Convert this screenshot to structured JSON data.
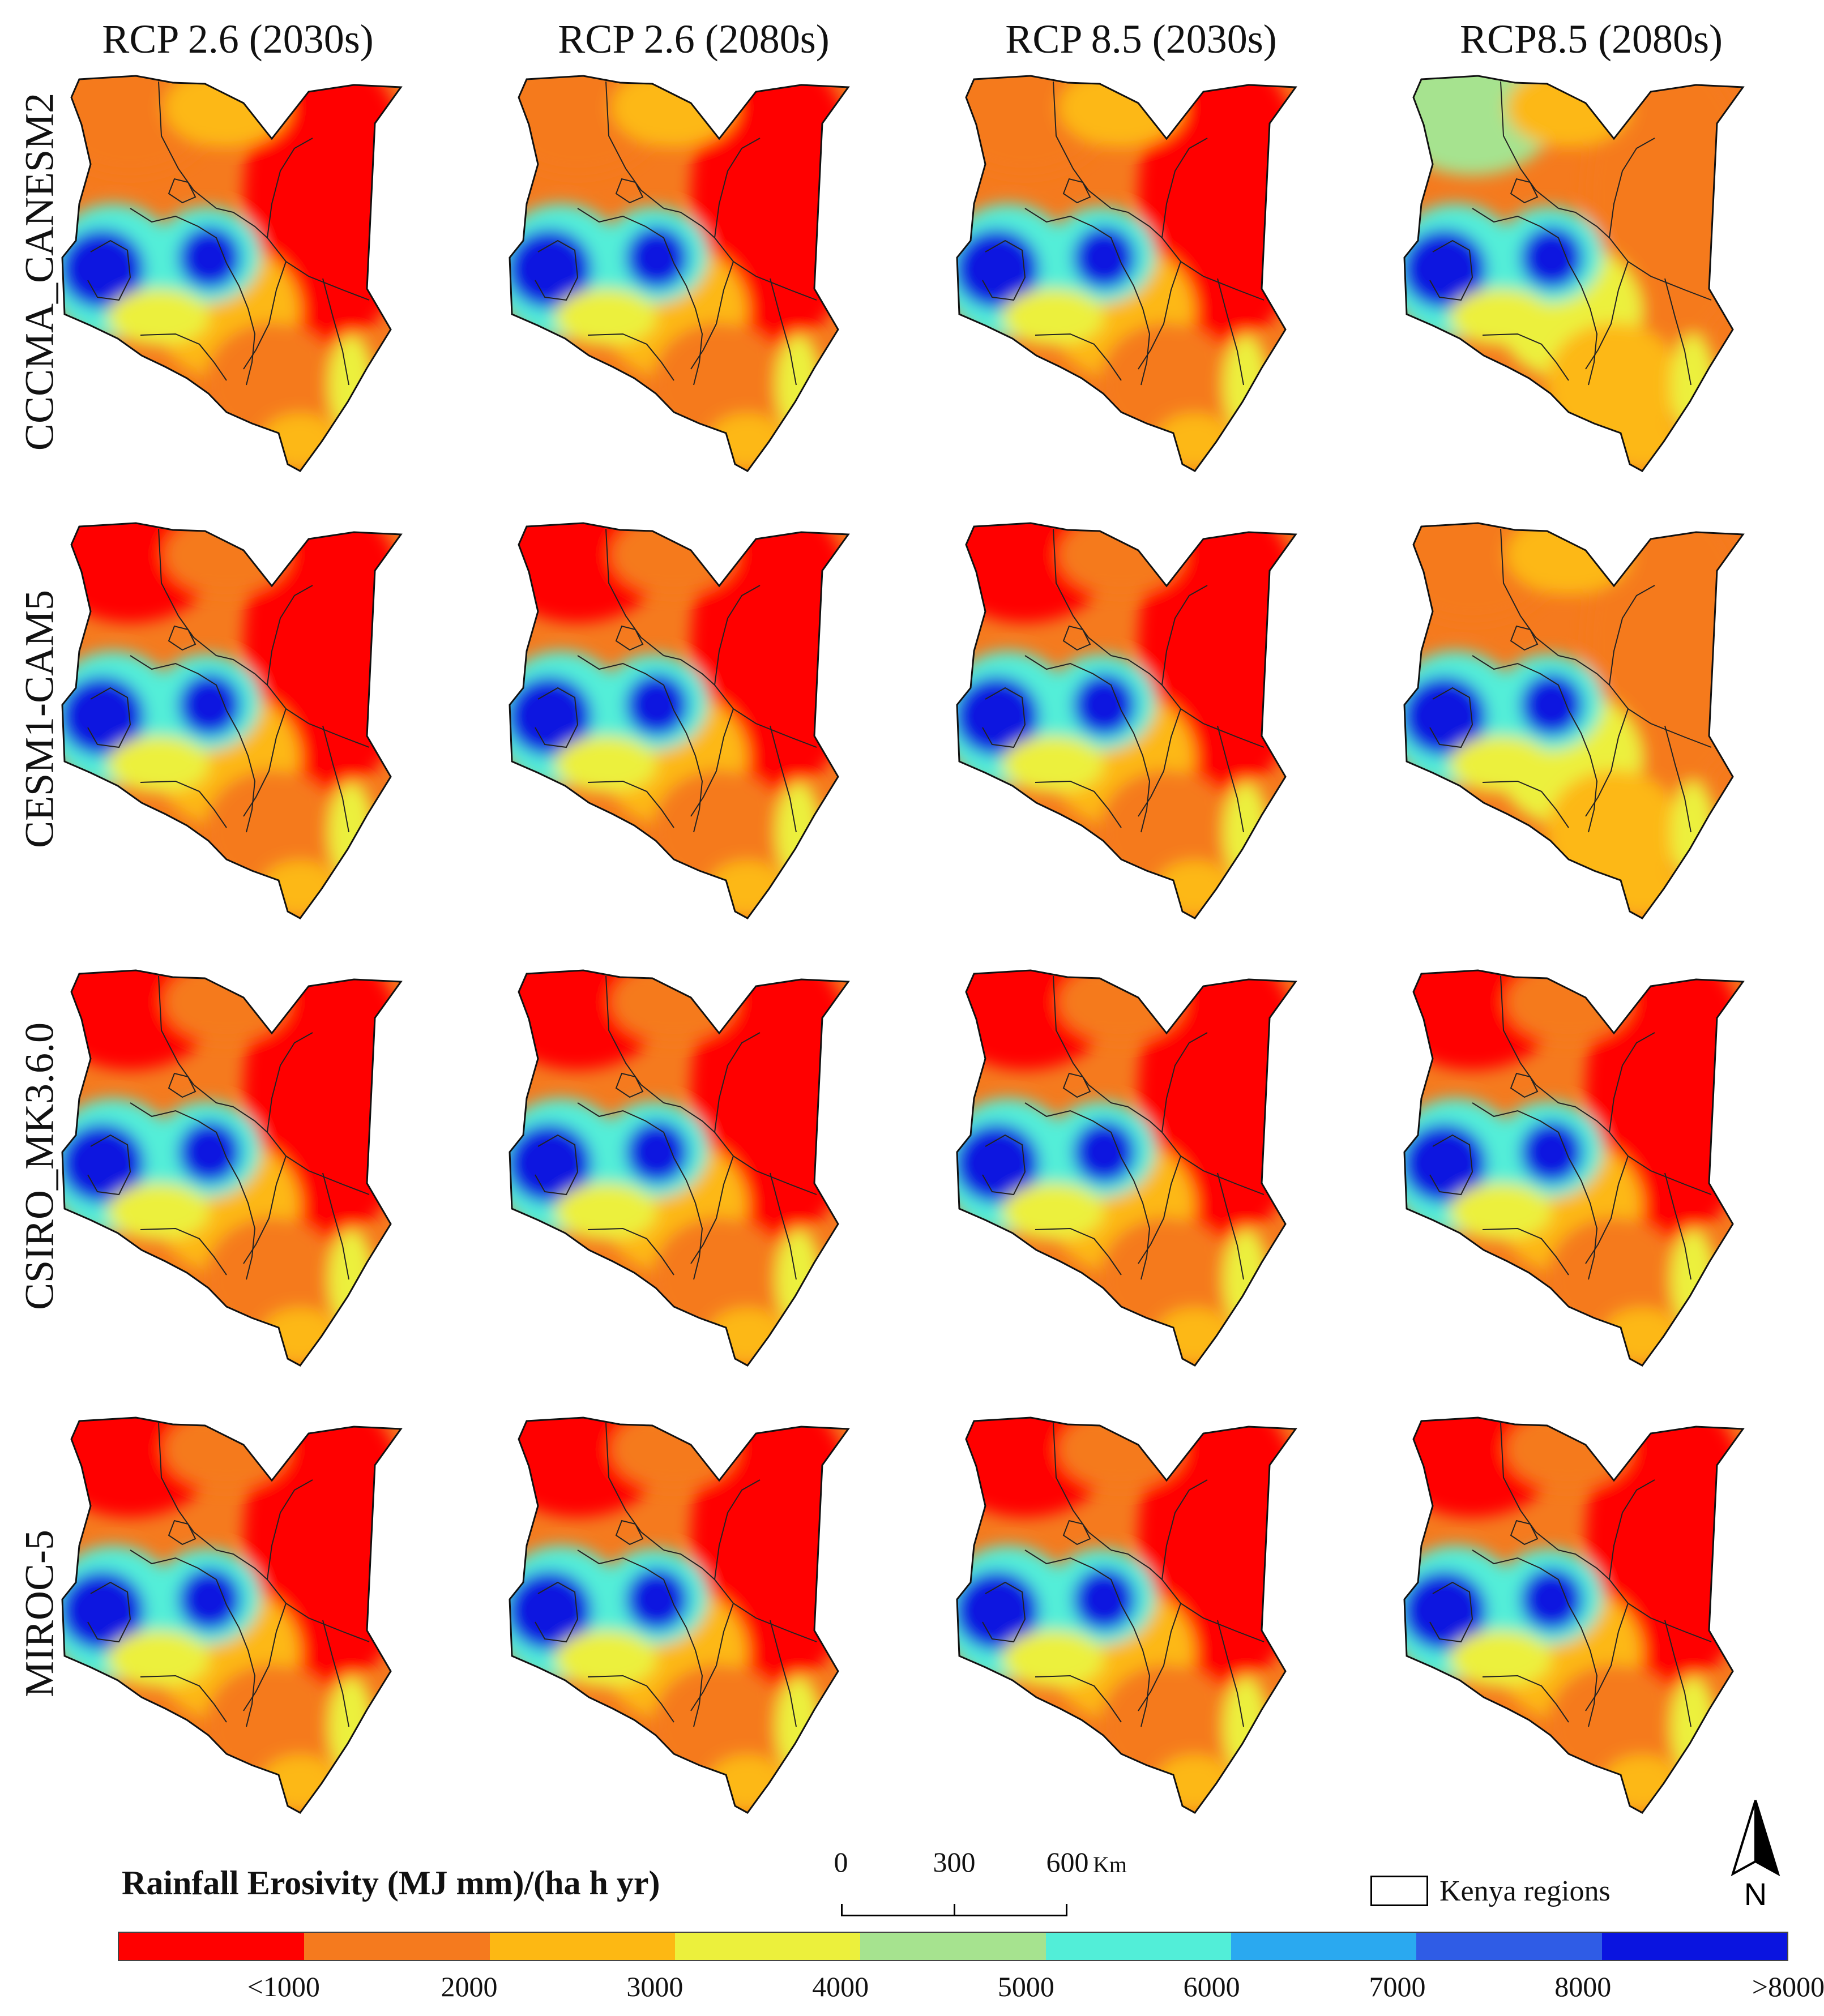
{
  "columns": [
    {
      "label": "RCP 2.6 (2030s)"
    },
    {
      "label": "RCP 2.6 (2080s)"
    },
    {
      "label": "RCP 8.5 (2030s)"
    },
    {
      "label": "RCP8.5 (2080s)"
    }
  ],
  "rows": [
    {
      "label": "CCCMA_CANESM2"
    },
    {
      "label": "CESM1-CAM5"
    },
    {
      "label": "CSIRO_MK3.6.0"
    },
    {
      "label": "MIROC-5"
    }
  ],
  "legend": {
    "title": "Rainfall Erosivity (MJ mm)/(ha h yr)",
    "classes": [
      {
        "color": "#ff0000"
      },
      {
        "color": "#f57a1e"
      },
      {
        "color": "#fdb813"
      },
      {
        "color": "#ecf03c"
      },
      {
        "color": "#a6e38f"
      },
      {
        "color": "#52eed8"
      },
      {
        "color": "#2aa9f0"
      },
      {
        "color": "#2f5ce6"
      },
      {
        "color": "#0a14e0"
      }
    ],
    "labels": [
      "<1000",
      "2000",
      "3000",
      "4000",
      "5000",
      "6000",
      "7000",
      "8000",
      ">8000"
    ]
  },
  "scalebar": {
    "ticks": [
      "0",
      "300",
      "600"
    ],
    "unit": "Km"
  },
  "regions_key": {
    "label": "Kenya regions"
  },
  "north_arrow": {
    "label": "N"
  }
}
